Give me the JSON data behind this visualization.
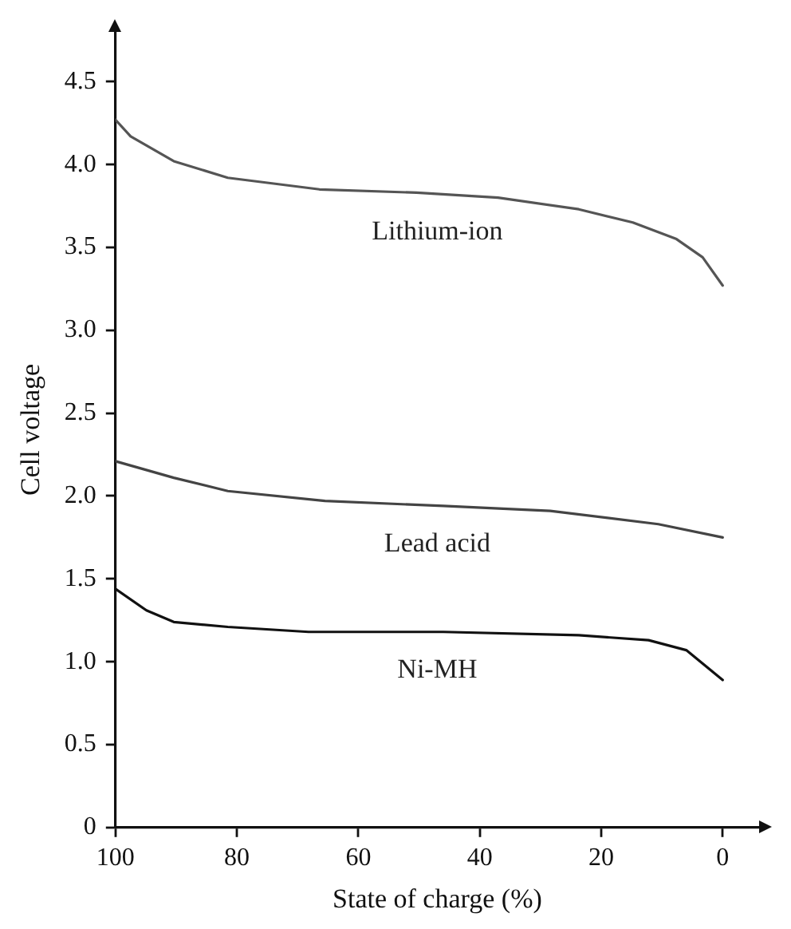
{
  "chart_data": {
    "type": "line",
    "xlabel": "State of charge (%)",
    "ylabel": "Cell voltage",
    "xlim": [
      100,
      -6
    ],
    "ylim": [
      0,
      4.8
    ],
    "xticks": [
      100,
      80,
      60,
      40,
      20,
      0
    ],
    "yticks": [
      0,
      0.5,
      {
        "value": 1,
        "label": "1.0"
      },
      1.5,
      {
        "value": 2,
        "label": "2.0"
      },
      2.5,
      {
        "value": 3,
        "label": "3.0"
      },
      3.5,
      {
        "value": 4,
        "label": "4.0"
      },
      4.5
    ],
    "series": [
      {
        "name": "Lithium-ion",
        "color": "#555555",
        "x": [
          100,
          97.5,
          90.4,
          81.5,
          66.4,
          50.4,
          37,
          23.7,
          14.8,
          7.6,
          3.3,
          0
        ],
        "values": [
          4.27,
          4.17,
          4.02,
          3.92,
          3.85,
          3.83,
          3.8,
          3.73,
          3.65,
          3.55,
          3.44,
          3.27
        ]
      },
      {
        "name": "Lead acid",
        "color": "#444444",
        "x": [
          100,
          90.4,
          81.5,
          65.5,
          46,
          28.4,
          10.6,
          0
        ],
        "values": [
          2.21,
          2.11,
          2.03,
          1.97,
          1.94,
          1.91,
          1.83,
          1.75
        ]
      },
      {
        "name": "Ni-MH",
        "color": "#111111",
        "x": [
          100,
          94.9,
          90.4,
          81.5,
          68.2,
          46,
          23.7,
          12.2,
          6,
          0
        ],
        "values": [
          1.44,
          1.31,
          1.24,
          1.21,
          1.18,
          1.18,
          1.16,
          1.13,
          1.07,
          0.89
        ]
      }
    ],
    "grid": false,
    "legend": false,
    "marker": "none",
    "line_style": "solid"
  }
}
